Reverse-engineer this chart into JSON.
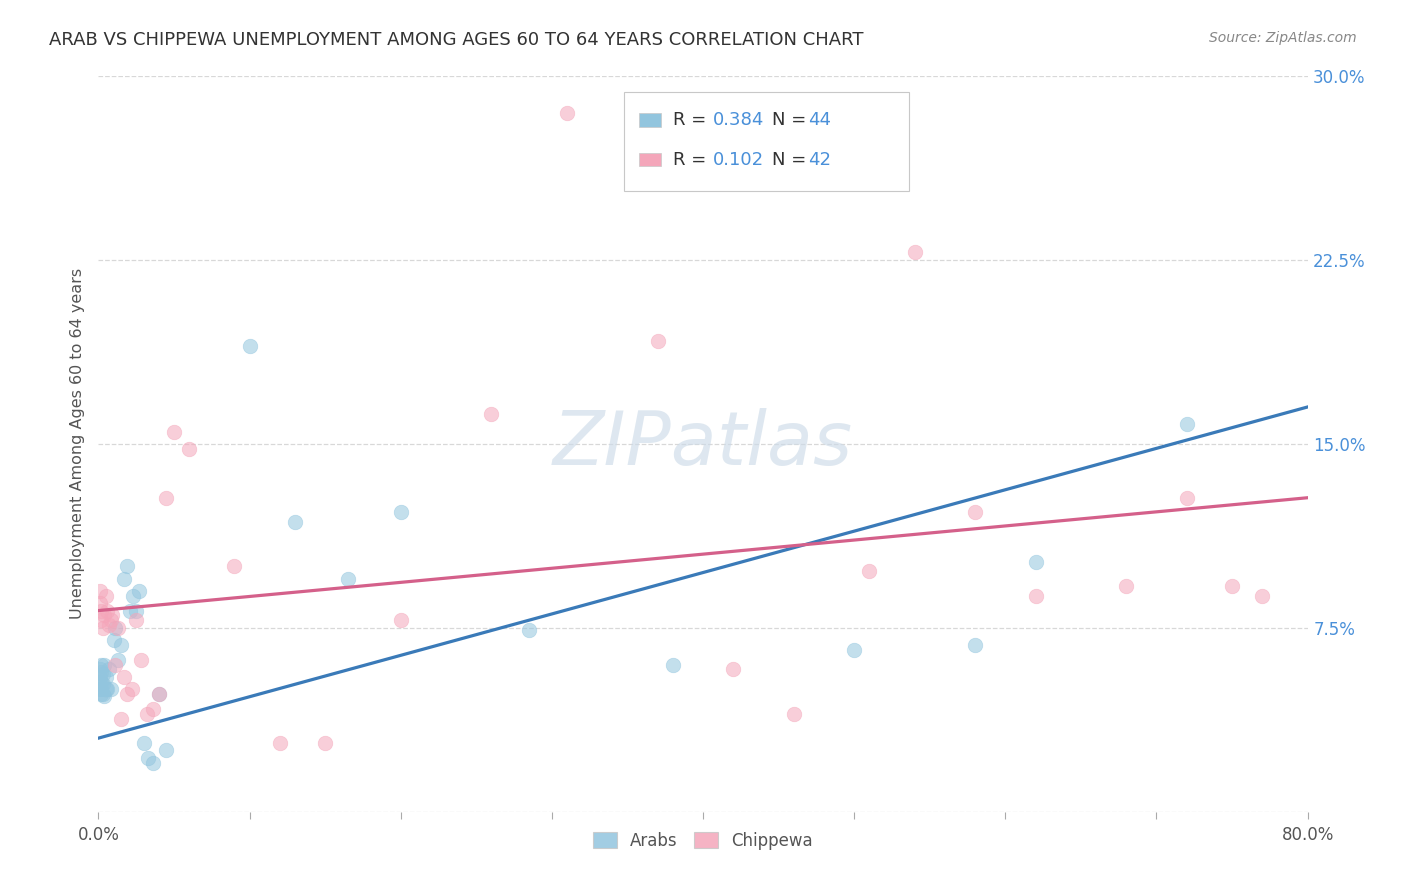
{
  "title": "ARAB VS CHIPPEWA UNEMPLOYMENT AMONG AGES 60 TO 64 YEARS CORRELATION CHART",
  "source": "Source: ZipAtlas.com",
  "ylabel": "Unemployment Among Ages 60 to 64 years",
  "xlim": [
    0.0,
    0.8
  ],
  "ylim": [
    0.0,
    0.3
  ],
  "xticks": [
    0.0,
    0.1,
    0.2,
    0.3,
    0.4,
    0.5,
    0.6,
    0.7,
    0.8
  ],
  "xticklabels": [
    "0.0%",
    "",
    "",
    "",
    "",
    "",
    "",
    "",
    "80.0%"
  ],
  "yticks": [
    0.0,
    0.075,
    0.15,
    0.225,
    0.3
  ],
  "yticklabels_right": [
    "",
    "7.5%",
    "15.0%",
    "22.5%",
    "30.0%"
  ],
  "arab_color": "#92c5de",
  "arab_line_color": "#3a7ab8",
  "chippewa_color": "#f4a6ba",
  "chippewa_line_color": "#d4608a",
  "arab_R": "0.384",
  "arab_N": "44",
  "chippewa_R": "0.102",
  "chippewa_N": "42",
  "background_color": "#ffffff",
  "grid_color": "#d8d8d8",
  "watermark_color": "#cddbe8",
  "title_color": "#333333",
  "source_color": "#888888",
  "label_color": "#555555",
  "right_tick_color": "#4a90d9",
  "legend_text_color": "#333333",
  "legend_value_color": "#4a90d9",
  "arab_x": [
    0.001,
    0.001,
    0.001,
    0.001,
    0.002,
    0.002,
    0.002,
    0.002,
    0.002,
    0.003,
    0.003,
    0.003,
    0.004,
    0.004,
    0.005,
    0.005,
    0.006,
    0.007,
    0.008,
    0.01,
    0.011,
    0.013,
    0.015,
    0.017,
    0.019,
    0.021,
    0.023,
    0.025,
    0.027,
    0.03,
    0.033,
    0.036,
    0.04,
    0.045,
    0.1,
    0.13,
    0.165,
    0.2,
    0.285,
    0.38,
    0.5,
    0.58,
    0.62,
    0.72
  ],
  "arab_y": [
    0.05,
    0.052,
    0.055,
    0.058,
    0.048,
    0.05,
    0.053,
    0.057,
    0.06,
    0.048,
    0.052,
    0.056,
    0.047,
    0.06,
    0.05,
    0.055,
    0.05,
    0.058,
    0.05,
    0.07,
    0.075,
    0.062,
    0.068,
    0.095,
    0.1,
    0.082,
    0.088,
    0.082,
    0.09,
    0.028,
    0.022,
    0.02,
    0.048,
    0.025,
    0.19,
    0.118,
    0.095,
    0.122,
    0.074,
    0.06,
    0.066,
    0.068,
    0.102,
    0.158
  ],
  "chippewa_x": [
    0.001,
    0.001,
    0.002,
    0.002,
    0.003,
    0.004,
    0.005,
    0.006,
    0.007,
    0.008,
    0.009,
    0.011,
    0.013,
    0.015,
    0.017,
    0.019,
    0.022,
    0.025,
    0.028,
    0.032,
    0.036,
    0.04,
    0.045,
    0.05,
    0.06,
    0.09,
    0.12,
    0.15,
    0.2,
    0.26,
    0.31,
    0.37,
    0.42,
    0.46,
    0.51,
    0.54,
    0.58,
    0.62,
    0.68,
    0.72,
    0.75,
    0.77
  ],
  "chippewa_y": [
    0.085,
    0.09,
    0.082,
    0.078,
    0.075,
    0.08,
    0.088,
    0.082,
    0.076,
    0.078,
    0.08,
    0.06,
    0.075,
    0.038,
    0.055,
    0.048,
    0.05,
    0.078,
    0.062,
    0.04,
    0.042,
    0.048,
    0.128,
    0.155,
    0.148,
    0.1,
    0.028,
    0.028,
    0.078,
    0.162,
    0.285,
    0.192,
    0.058,
    0.04,
    0.098,
    0.228,
    0.122,
    0.088,
    0.092,
    0.128,
    0.092,
    0.088
  ],
  "arab_line_start_y": 0.03,
  "arab_line_end_y": 0.165,
  "chippewa_line_start_y": 0.082,
  "chippewa_line_end_y": 0.128
}
